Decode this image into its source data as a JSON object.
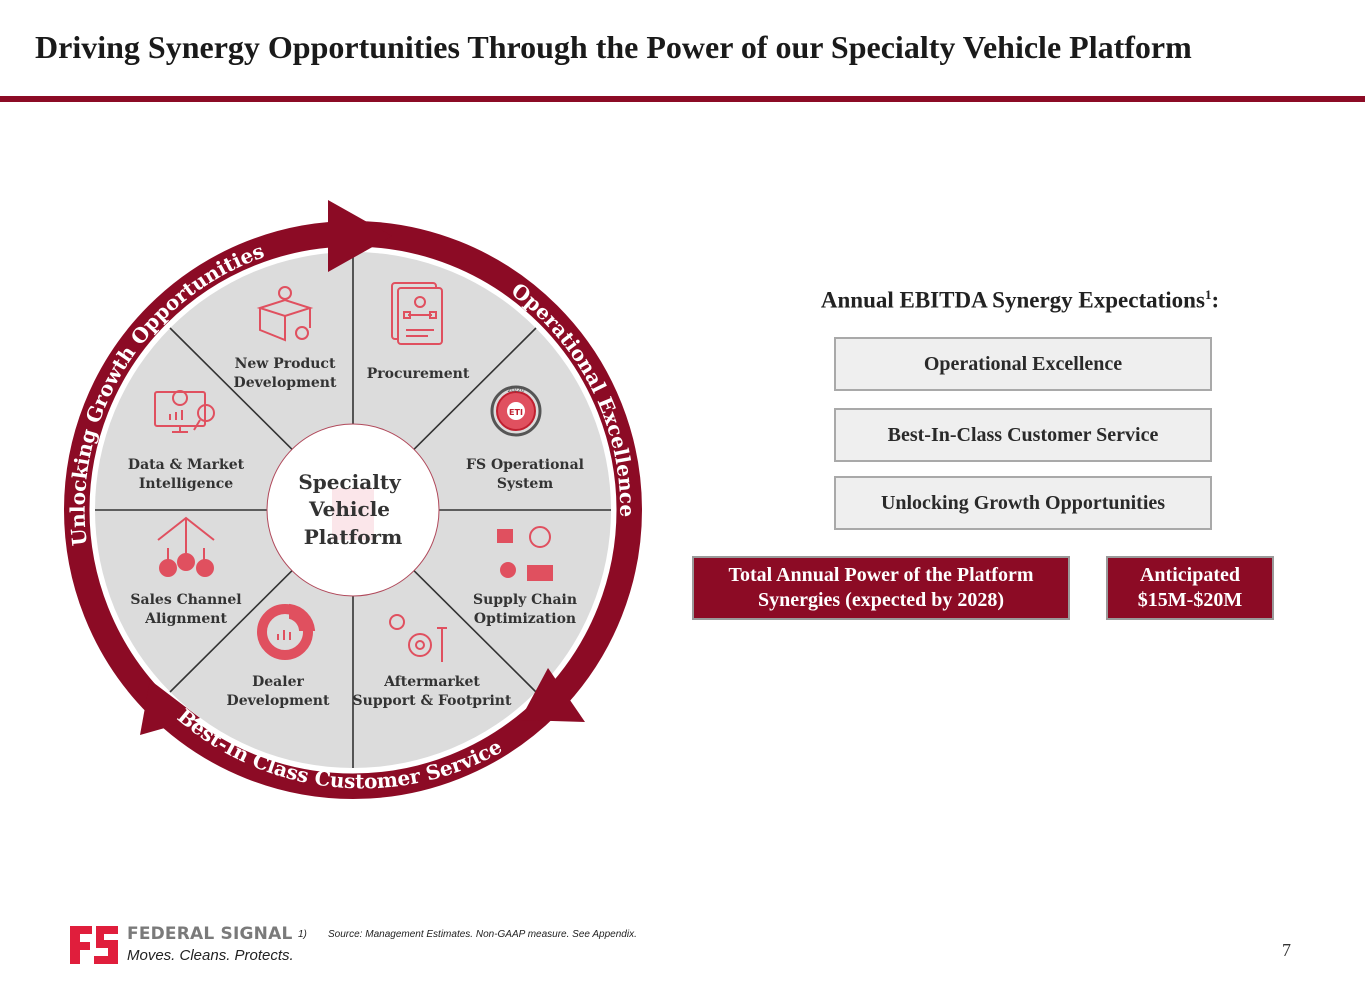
{
  "header": {
    "title": "Driving Synergy Opportunities Through the Power of our Specialty Vehicle Platform"
  },
  "wheel": {
    "center": [
      "Specialty",
      "Vehicle",
      "Platform"
    ],
    "ring": {
      "top_left": "Unlocking Growth Opportunities",
      "top_right": "Operational Excellence",
      "bottom": "Best-In Class Customer Service"
    },
    "segments": [
      {
        "lines": [
          "New Product",
          "Development"
        ],
        "icon": "lightbulb-box-gear-icon"
      },
      {
        "lines": [
          "Procurement"
        ],
        "icon": "document-flowchart-icon"
      },
      {
        "lines": [
          "FS Operational",
          "System"
        ],
        "icon": "eti-badge-icon"
      },
      {
        "lines": [
          "Supply Chain",
          "Optimization"
        ],
        "icon": "supply-chain-icon"
      },
      {
        "lines": [
          "Aftermarket",
          "Support & Footprint"
        ],
        "icon": "gears-wrench-icon"
      },
      {
        "lines": [
          "Dealer",
          "Development"
        ],
        "icon": "donut-chart-icon"
      },
      {
        "lines": [
          "Sales Channel",
          "Alignment"
        ],
        "icon": "people-network-icon"
      },
      {
        "lines": [
          "Data & Market",
          "Intelligence"
        ],
        "icon": "monitor-analytics-icon"
      }
    ],
    "badge_text": [
      "20/20",
      "ETI"
    ]
  },
  "synergy": {
    "title": "Annual EBITDA Synergy Expectations",
    "footnote_ref": "1",
    "title_suffix": ":",
    "items": [
      "Operational Excellence",
      "Best-In-Class Customer Service",
      "Unlocking Growth Opportunities"
    ],
    "total_label": [
      "Total Annual Power of the Platform",
      "Synergies (expected by 2028)"
    ],
    "total_value": [
      "Anticipated",
      "$15M-$20M"
    ]
  },
  "footer": {
    "brand": "FEDERAL SIGNAL",
    "tagline": "Moves. Cleans. Protects.",
    "footnote_number": "1)",
    "footnote": "Source: Management Estimates. Non-GAAP measure. See Appendix.",
    "page_number": "7"
  },
  "colors": {
    "brand_red": "#8c0b25",
    "icon_red": "#e0505f",
    "wheel_gray": "#dcdcdc",
    "box_gray": "#efefef"
  }
}
